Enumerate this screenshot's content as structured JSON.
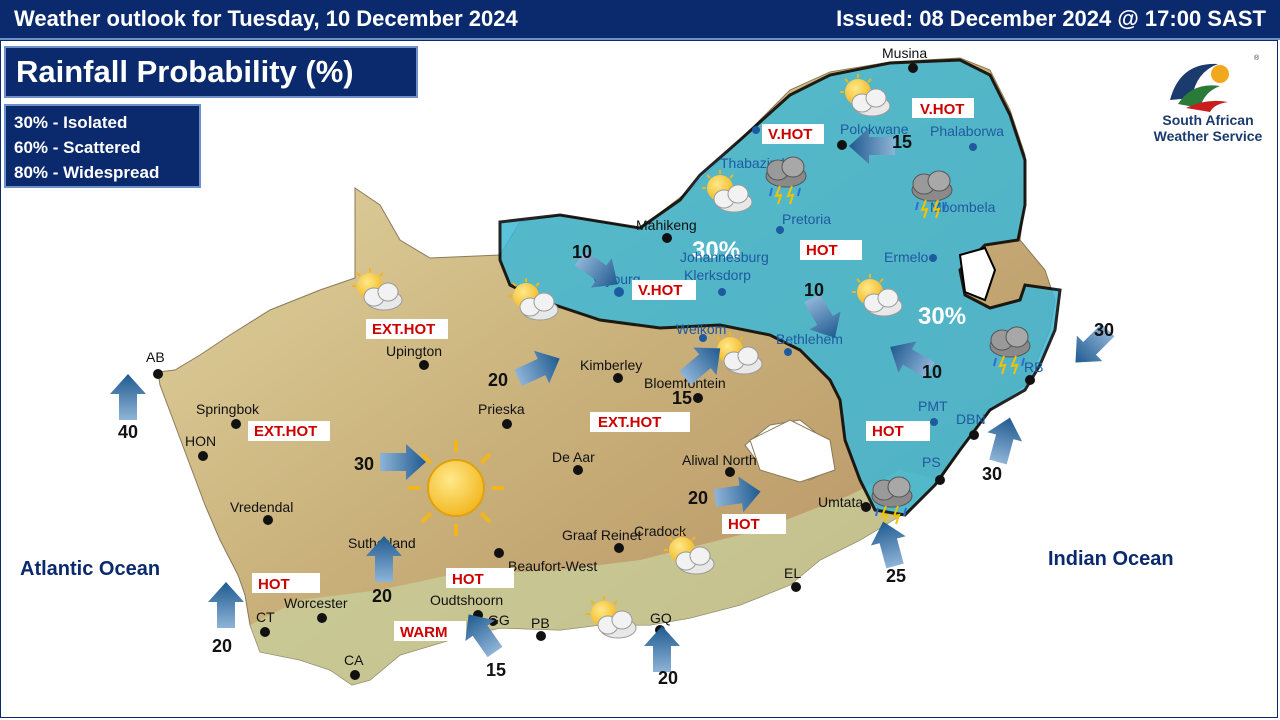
{
  "header": {
    "left": "Weather outlook for Tuesday, 10 December 2024",
    "right": "Issued: 08 December 2024  @ 17:00 SAST"
  },
  "title": "Rainfall  Probability (%)",
  "legend": [
    "30% - Isolated",
    "60% - Scattered",
    "80% - Widespread"
  ],
  "logo": {
    "line1": "South African",
    "line2": "Weather Service"
  },
  "oceans": {
    "atlantic": "Atlantic Ocean",
    "indian": "Indian Ocean"
  },
  "rain_areas": [
    {
      "label": "30%"
    },
    {
      "label": "30%"
    }
  ],
  "cities": {
    "musina": "Musina",
    "polokwane": "Polokwane",
    "phalaborwa": "Phalaborwa",
    "thabazimbi": "Thabazimbi",
    "mbombela": "Mbombela",
    "pretoria": "Pretoria",
    "mahikeng": "Mahikeng",
    "johannesburg": "Johannesburg",
    "klerksdorp": "Klerksdorp",
    "vryburg": "Vryburg",
    "ermelo": "Ermelo",
    "welkom": "Welkom",
    "bethlehem": "Bethlehem",
    "kimberley": "Kimberley",
    "bloemfontein": "Bloemfontein",
    "upington": "Upington",
    "ab": "AB",
    "springbok": "Springbok",
    "hon": "HON",
    "prieska": "Prieska",
    "de_aar": "De Aar",
    "aliwal_north": "Aliwal North",
    "vredendal": "Vredendal",
    "sutherland": "Sutherland",
    "graaf_reinet": "Graaf Reinet",
    "cradock": "Cradock",
    "beaufort_west": "Beaufort-West",
    "umtata": "Umtata",
    "pmt": "PMT",
    "dbn": "DBN",
    "ps": "PS",
    "rb": "RB",
    "el": "EL",
    "oudtshoorn": "Oudtshoorn",
    "gg": "GG",
    "pb": "PB",
    "gq": "GQ",
    "worcester": "Worcester",
    "ct": "CT",
    "ca": "CA"
  },
  "temperature_labels": {
    "vhot_north": "V.HOT",
    "vhot_polokwane": "V.HOT",
    "hot_pretoria": "HOT",
    "vhot_vryburg": "V.HOT",
    "exthot_upington": "EXT.HOT",
    "exthot_springbok": "EXT.HOT",
    "exthot_kimberley": "EXT.HOT",
    "hot_kzn": "HOT",
    "hot_aliwal": "HOT",
    "hot_ct": "HOT",
    "hot_karoo": "HOT",
    "warm_gg": "WARM"
  },
  "wind": {
    "polokwane": "15",
    "vryburg": "10",
    "bethlehem": "10",
    "kzn": "10",
    "bloem": "15",
    "kimberley": "20",
    "karoo": "30",
    "ab": "40",
    "aliwal": "20",
    "sutherland": "20",
    "ct": "20",
    "gg": "15",
    "gq": "20",
    "umtata": "25",
    "dbn": "30",
    "rb": "30"
  },
  "colors": {
    "header_bg": "#0b2a6e",
    "rain_fill": "#3fb8d6",
    "land": "#d9c79a",
    "border_line": "#000000",
    "temp_text": "#cc0000",
    "arrow": "#1f5a8f"
  },
  "icons": [
    "sun-icon",
    "partly-cloudy-icon",
    "thunderstorm-icon",
    "wind-arrow-icon"
  ]
}
